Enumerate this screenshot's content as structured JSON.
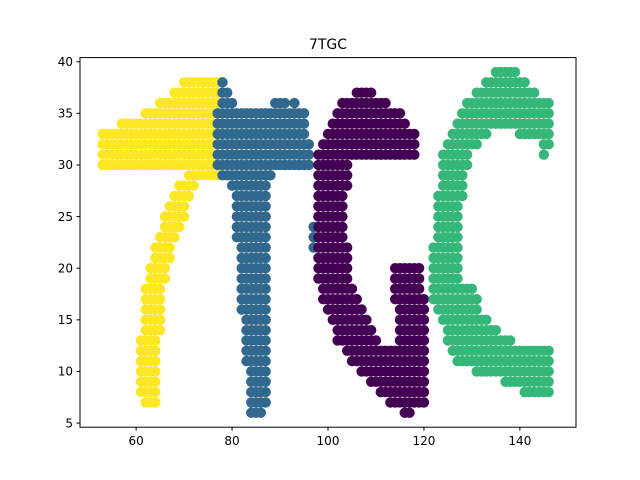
{
  "chart_data": {
    "type": "scatter",
    "title": "7TGC",
    "xlabel": "",
    "ylabel": "",
    "xlim": [
      48.3,
      151.7
    ],
    "ylim": [
      4.6,
      40.4
    ],
    "xticks": [
      60,
      80,
      100,
      120,
      140
    ],
    "yticks": [
      5,
      10,
      15,
      20,
      25,
      30,
      35,
      40
    ],
    "grid": false,
    "legend": "none",
    "series": [
      {
        "color": "#fde725",
        "marker_radius_px": 5.2,
        "rows": [
          {
            "y": 38,
            "x_start": 70,
            "x_end": 77
          },
          {
            "y": 37,
            "x_start": 68,
            "x_end": 77
          },
          {
            "y": 36,
            "x_start": 65,
            "x_end": 77
          },
          {
            "y": 35,
            "x_start": 62,
            "x_end": 77
          },
          {
            "y": 34,
            "x_start": 57,
            "x_end": 77
          },
          {
            "y": 33,
            "x_start": 53,
            "x_end": 77
          },
          {
            "y": 32,
            "x_start": 53,
            "x_end": 77
          },
          {
            "y": 31,
            "x_start": 53,
            "x_end": 77
          },
          {
            "y": 30,
            "x_start": 53,
            "x_end": 77
          },
          {
            "y": 29,
            "x_start": 71,
            "x_end": 77
          },
          {
            "y": 28,
            "x_start": 69,
            "x_end": 72
          },
          {
            "y": 27,
            "x_start": 68,
            "x_end": 71
          },
          {
            "y": 26,
            "x_start": 67,
            "x_end": 70
          },
          {
            "y": 25,
            "x_start": 66,
            "x_end": 70
          },
          {
            "y": 24,
            "x_start": 66,
            "x_end": 69
          },
          {
            "y": 23,
            "x_start": 65,
            "x_end": 68
          },
          {
            "y": 22,
            "x_start": 64,
            "x_end": 67
          },
          {
            "y": 21,
            "x_start": 64,
            "x_end": 67
          },
          {
            "y": 20,
            "x_start": 63,
            "x_end": 66
          },
          {
            "y": 19,
            "x_start": 63,
            "x_end": 66
          },
          {
            "y": 18,
            "x_start": 62,
            "x_end": 65
          },
          {
            "y": 17,
            "x_start": 62,
            "x_end": 65
          },
          {
            "y": 16,
            "x_start": 62,
            "x_end": 65
          },
          {
            "y": 15,
            "x_start": 62,
            "x_end": 65
          },
          {
            "y": 14,
            "x_start": 62,
            "x_end": 65
          },
          {
            "y": 13,
            "x_start": 61,
            "x_end": 64
          },
          {
            "y": 12,
            "x_start": 61,
            "x_end": 64
          },
          {
            "y": 11,
            "x_start": 61,
            "x_end": 64
          },
          {
            "y": 10,
            "x_start": 61,
            "x_end": 64
          },
          {
            "y": 9,
            "x_start": 61,
            "x_end": 64
          },
          {
            "y": 8,
            "x_start": 61,
            "x_end": 64
          },
          {
            "y": 7,
            "x_start": 62,
            "x_end": 64
          }
        ]
      },
      {
        "color": "#31688e",
        "marker_radius_px": 5.2,
        "rows": [
          {
            "y": 38,
            "x_start": 78,
            "x_end": 78
          },
          {
            "y": 37,
            "x_start": 78,
            "x_end": 79
          },
          {
            "y": 36,
            "x_start": 78,
            "x_end": 80
          },
          {
            "y": 36,
            "x_start": 89,
            "x_end": 91
          },
          {
            "y": 36,
            "x_start": 93,
            "x_end": 93
          },
          {
            "y": 35,
            "x_start": 77,
            "x_end": 95
          },
          {
            "y": 34,
            "x_start": 77,
            "x_end": 95
          },
          {
            "y": 33,
            "x_start": 77,
            "x_end": 95
          },
          {
            "y": 32,
            "x_start": 77,
            "x_end": 96
          },
          {
            "y": 31,
            "x_start": 77,
            "x_end": 96
          },
          {
            "y": 30,
            "x_start": 77,
            "x_end": 96
          },
          {
            "y": 29,
            "x_start": 78,
            "x_end": 88
          },
          {
            "y": 28,
            "x_start": 80,
            "x_end": 87
          },
          {
            "y": 27,
            "x_start": 81,
            "x_end": 87
          },
          {
            "y": 26,
            "x_start": 81,
            "x_end": 87
          },
          {
            "y": 25,
            "x_start": 81,
            "x_end": 87
          },
          {
            "y": 24,
            "x_start": 81,
            "x_end": 87
          },
          {
            "y": 24,
            "x_start": 97,
            "x_end": 97
          },
          {
            "y": 23,
            "x_start": 81,
            "x_end": 87
          },
          {
            "y": 23,
            "x_start": 97,
            "x_end": 97
          },
          {
            "y": 22,
            "x_start": 82,
            "x_end": 87
          },
          {
            "y": 22,
            "x_start": 97,
            "x_end": 97
          },
          {
            "y": 21,
            "x_start": 82,
            "x_end": 87
          },
          {
            "y": 20,
            "x_start": 82,
            "x_end": 87
          },
          {
            "y": 19,
            "x_start": 82,
            "x_end": 87
          },
          {
            "y": 18,
            "x_start": 82,
            "x_end": 87
          },
          {
            "y": 17,
            "x_start": 82,
            "x_end": 87
          },
          {
            "y": 16,
            "x_start": 82,
            "x_end": 87
          },
          {
            "y": 15,
            "x_start": 83,
            "x_end": 87
          },
          {
            "y": 14,
            "x_start": 83,
            "x_end": 87
          },
          {
            "y": 13,
            "x_start": 83,
            "x_end": 87
          },
          {
            "y": 12,
            "x_start": 83,
            "x_end": 87
          },
          {
            "y": 11,
            "x_start": 83,
            "x_end": 87
          },
          {
            "y": 10,
            "x_start": 84,
            "x_end": 87
          },
          {
            "y": 9,
            "x_start": 84,
            "x_end": 87
          },
          {
            "y": 8,
            "x_start": 84,
            "x_end": 87
          },
          {
            "y": 7,
            "x_start": 84,
            "x_end": 87
          },
          {
            "y": 6,
            "x_start": 84,
            "x_end": 86
          }
        ]
      },
      {
        "color": "#440154",
        "marker_radius_px": 5.2,
        "rows": [
          {
            "y": 37,
            "x_start": 106,
            "x_end": 109
          },
          {
            "y": 36,
            "x_start": 103,
            "x_end": 112
          },
          {
            "y": 35,
            "x_start": 102,
            "x_end": 115
          },
          {
            "y": 34,
            "x_start": 101,
            "x_end": 116
          },
          {
            "y": 33,
            "x_start": 100,
            "x_end": 118
          },
          {
            "y": 32,
            "x_start": 99,
            "x_end": 118
          },
          {
            "y": 31,
            "x_start": 98,
            "x_end": 118
          },
          {
            "y": 30,
            "x_start": 98,
            "x_end": 104
          },
          {
            "y": 29,
            "x_start": 98,
            "x_end": 104
          },
          {
            "y": 28,
            "x_start": 98,
            "x_end": 104
          },
          {
            "y": 27,
            "x_start": 98,
            "x_end": 103
          },
          {
            "y": 26,
            "x_start": 98,
            "x_end": 103
          },
          {
            "y": 25,
            "x_start": 98,
            "x_end": 103
          },
          {
            "y": 24,
            "x_start": 98,
            "x_end": 103
          },
          {
            "y": 23,
            "x_start": 98,
            "x_end": 103
          },
          {
            "y": 22,
            "x_start": 98,
            "x_end": 104
          },
          {
            "y": 21,
            "x_start": 98,
            "x_end": 104
          },
          {
            "y": 20,
            "x_start": 98,
            "x_end": 104
          },
          {
            "y": 20,
            "x_start": 114,
            "x_end": 119
          },
          {
            "y": 19,
            "x_start": 98,
            "x_end": 104
          },
          {
            "y": 19,
            "x_start": 114,
            "x_end": 119
          },
          {
            "y": 18,
            "x_start": 99,
            "x_end": 105
          },
          {
            "y": 18,
            "x_start": 114,
            "x_end": 119
          },
          {
            "y": 17,
            "x_start": 99,
            "x_end": 106
          },
          {
            "y": 17,
            "x_start": 114,
            "x_end": 120
          },
          {
            "y": 16,
            "x_start": 100,
            "x_end": 107
          },
          {
            "y": 16,
            "x_start": 115,
            "x_end": 120
          },
          {
            "y": 15,
            "x_start": 101,
            "x_end": 108
          },
          {
            "y": 15,
            "x_start": 115,
            "x_end": 120
          },
          {
            "y": 14,
            "x_start": 102,
            "x_end": 109
          },
          {
            "y": 14,
            "x_start": 115,
            "x_end": 120
          },
          {
            "y": 13,
            "x_start": 102,
            "x_end": 110
          },
          {
            "y": 13,
            "x_start": 115,
            "x_end": 120
          },
          {
            "y": 12,
            "x_start": 104,
            "x_end": 120
          },
          {
            "y": 11,
            "x_start": 105,
            "x_end": 120
          },
          {
            "y": 10,
            "x_start": 107,
            "x_end": 120
          },
          {
            "y": 9,
            "x_start": 109,
            "x_end": 120
          },
          {
            "y": 8,
            "x_start": 111,
            "x_end": 120
          },
          {
            "y": 7,
            "x_start": 113,
            "x_end": 120
          },
          {
            "y": 6,
            "x_start": 116,
            "x_end": 117
          }
        ]
      },
      {
        "color": "#35b779",
        "marker_radius_px": 5.2,
        "rows": [
          {
            "y": 39,
            "x_start": 135,
            "x_end": 139
          },
          {
            "y": 38,
            "x_start": 133,
            "x_end": 141
          },
          {
            "y": 37,
            "x_start": 131,
            "x_end": 143
          },
          {
            "y": 36,
            "x_start": 129,
            "x_end": 146
          },
          {
            "y": 35,
            "x_start": 128,
            "x_end": 146
          },
          {
            "y": 34,
            "x_start": 127,
            "x_end": 146
          },
          {
            "y": 33,
            "x_start": 126,
            "x_end": 133
          },
          {
            "y": 33,
            "x_start": 140,
            "x_end": 146
          },
          {
            "y": 32,
            "x_start": 125,
            "x_end": 131
          },
          {
            "y": 32,
            "x_start": 145,
            "x_end": 146
          },
          {
            "y": 31,
            "x_start": 124,
            "x_end": 129
          },
          {
            "y": 31,
            "x_start": 145,
            "x_end": 145
          },
          {
            "y": 30,
            "x_start": 124,
            "x_end": 129
          },
          {
            "y": 29,
            "x_start": 124,
            "x_end": 128
          },
          {
            "y": 28,
            "x_start": 124,
            "x_end": 128
          },
          {
            "y": 27,
            "x_start": 123,
            "x_end": 128
          },
          {
            "y": 26,
            "x_start": 123,
            "x_end": 127
          },
          {
            "y": 25,
            "x_start": 123,
            "x_end": 127
          },
          {
            "y": 24,
            "x_start": 123,
            "x_end": 127
          },
          {
            "y": 23,
            "x_start": 123,
            "x_end": 127
          },
          {
            "y": 22,
            "x_start": 122,
            "x_end": 127
          },
          {
            "y": 21,
            "x_start": 122,
            "x_end": 127
          },
          {
            "y": 20,
            "x_start": 122,
            "x_end": 127
          },
          {
            "y": 19,
            "x_start": 122,
            "x_end": 127
          },
          {
            "y": 18,
            "x_start": 122,
            "x_end": 130
          },
          {
            "y": 17,
            "x_start": 122,
            "x_end": 131
          },
          {
            "y": 16,
            "x_start": 123,
            "x_end": 131
          },
          {
            "y": 15,
            "x_start": 124,
            "x_end": 133
          },
          {
            "y": 14,
            "x_start": 125,
            "x_end": 135
          },
          {
            "y": 13,
            "x_start": 125,
            "x_end": 138
          },
          {
            "y": 12,
            "x_start": 126,
            "x_end": 146
          },
          {
            "y": 11,
            "x_start": 127,
            "x_end": 146
          },
          {
            "y": 10,
            "x_start": 131,
            "x_end": 146
          },
          {
            "y": 9,
            "x_start": 137,
            "x_end": 146
          },
          {
            "y": 8,
            "x_start": 141,
            "x_end": 146
          }
        ]
      }
    ]
  }
}
